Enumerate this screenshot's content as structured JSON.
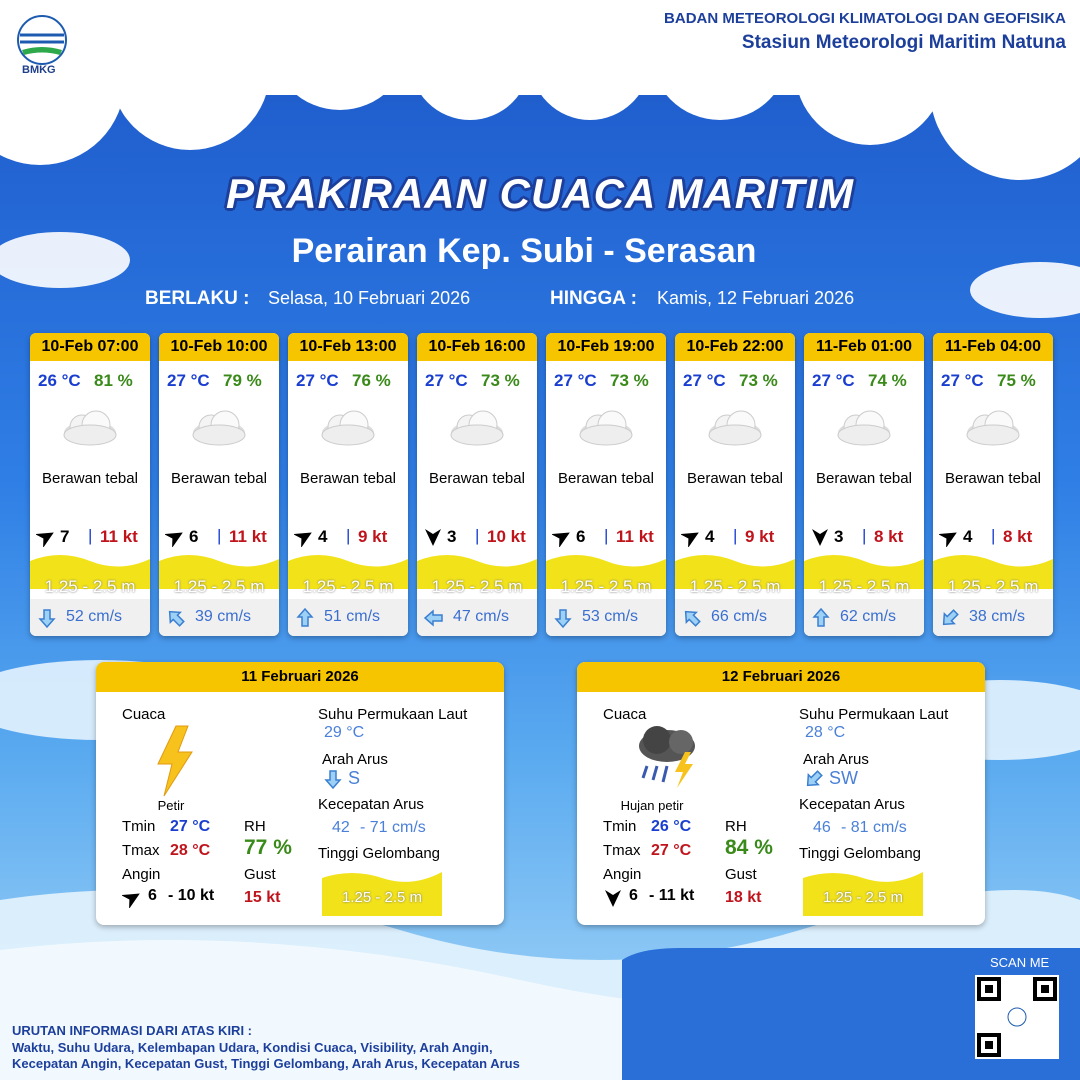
{
  "header": {
    "logo": "BMKG",
    "agency": "BADAN METEOROLOGI KLIMATOLOGI DAN GEOFISIKA",
    "station": "Stasiun Meteorologi Maritim Natuna"
  },
  "title": "PRAKIRAAN CUACA MARITIM",
  "subtitle": "Perairan Kep. Subi - Serasan",
  "validity": {
    "from_label": "BERLAKU :",
    "from": "Selasa, 10 Februari 2026",
    "to_label": "HINGGA :",
    "to": "Kamis, 12 Februari 2026"
  },
  "forecasts": [
    {
      "time": "10-Feb 07:00",
      "temp": "26 °C",
      "rh": "81 %",
      "weather": "Berawan tebal",
      "wind": "7",
      "gust": "11 kt",
      "wave": "1.25 - 2.5 m",
      "current": "52 cm/s"
    },
    {
      "time": "10-Feb 10:00",
      "temp": "27 °C",
      "rh": "79 %",
      "weather": "Berawan tebal",
      "wind": "6",
      "gust": "11 kt",
      "wave": "1.25 - 2.5 m",
      "current": "39 cm/s"
    },
    {
      "time": "10-Feb 13:00",
      "temp": "27 °C",
      "rh": "76 %",
      "weather": "Berawan tebal",
      "wind": "4",
      "gust": "9 kt",
      "wave": "1.25 - 2.5 m",
      "current": "51 cm/s"
    },
    {
      "time": "10-Feb 16:00",
      "temp": "27 °C",
      "rh": "73 %",
      "weather": "Berawan tebal",
      "wind": "3",
      "gust": "10 kt",
      "wave": "1.25 - 2.5 m",
      "current": "47 cm/s"
    },
    {
      "time": "10-Feb 19:00",
      "temp": "27 °C",
      "rh": "73 %",
      "weather": "Berawan tebal",
      "wind": "6",
      "gust": "11 kt",
      "wave": "1.25 - 2.5 m",
      "current": "53 cm/s"
    },
    {
      "time": "10-Feb 22:00",
      "temp": "27 °C",
      "rh": "73 %",
      "weather": "Berawan tebal",
      "wind": "4",
      "gust": "9 kt",
      "wave": "1.25 - 2.5 m",
      "current": "66 cm/s"
    },
    {
      "time": "11-Feb 01:00",
      "temp": "27 °C",
      "rh": "74 %",
      "weather": "Berawan tebal",
      "wind": "3",
      "gust": "8 kt",
      "wave": "1.25 - 2.5 m",
      "current": "62 cm/s"
    },
    {
      "time": "11-Feb 04:00",
      "temp": "27 °C",
      "rh": "75 %",
      "weather": "Berawan tebal",
      "wind": "4",
      "gust": "8 kt",
      "wave": "1.25 - 2.5 m",
      "current": "38 cm/s"
    }
  ],
  "daily": [
    {
      "date": "11 Februari 2026",
      "weather_label": "Cuaca",
      "weather": "Petir",
      "tmin_label": "Tmin",
      "tmin": "27 °C",
      "tmax_label": "Tmax",
      "tmax": "28 °C",
      "rh_label": "RH",
      "rh": "77 %",
      "wind_label": "Angin",
      "wind_min": "6",
      "wind_max": "- 10 kt",
      "gust_label": "Gust",
      "gust": "15 kt",
      "sst_label": "Suhu Permukaan Laut",
      "sst": "29 °C",
      "current_dir_label": "Arah Arus",
      "current_dir": "S",
      "current_speed_label": "Kecepatan Arus",
      "current_min": "42",
      "current_max": "- 71 cm/s",
      "wave_label": "Tinggi Gelombang",
      "wave": "1.25 - 2.5 m"
    },
    {
      "date": "12 Februari 2026",
      "weather_label": "Cuaca",
      "weather": "Hujan petir",
      "tmin_label": "Tmin",
      "tmin": "26 °C",
      "tmax_label": "Tmax",
      "tmax": "27 °C",
      "rh_label": "RH",
      "rh": "84 %",
      "wind_label": "Angin",
      "wind_min": "6",
      "wind_max": "- 11 kt",
      "gust_label": "Gust",
      "gust": "18 kt",
      "sst_label": "Suhu Permukaan Laut",
      "sst": "28 °C",
      "current_dir_label": "Arah Arus",
      "current_dir": "SW",
      "current_speed_label": "Kecepatan Arus",
      "current_min": "46",
      "current_max": "- 81 cm/s",
      "wave_label": "Tinggi Gelombang",
      "wave": "1.25 - 2.5 m"
    }
  ],
  "footer": {
    "scan": "SCAN ME",
    "info_title": "URUTAN INFORMASI DARI ATAS KIRI :",
    "info_line1": "Waktu, Suhu Udara, Kelembapan Udara, Kondisi Cuaca, Visibility, Arah Angin,",
    "info_line2": "Kecepatan Angin, Kecepatan Gust, Tinggi Gelombang, Arah Arus, Kecepatan Arus"
  }
}
